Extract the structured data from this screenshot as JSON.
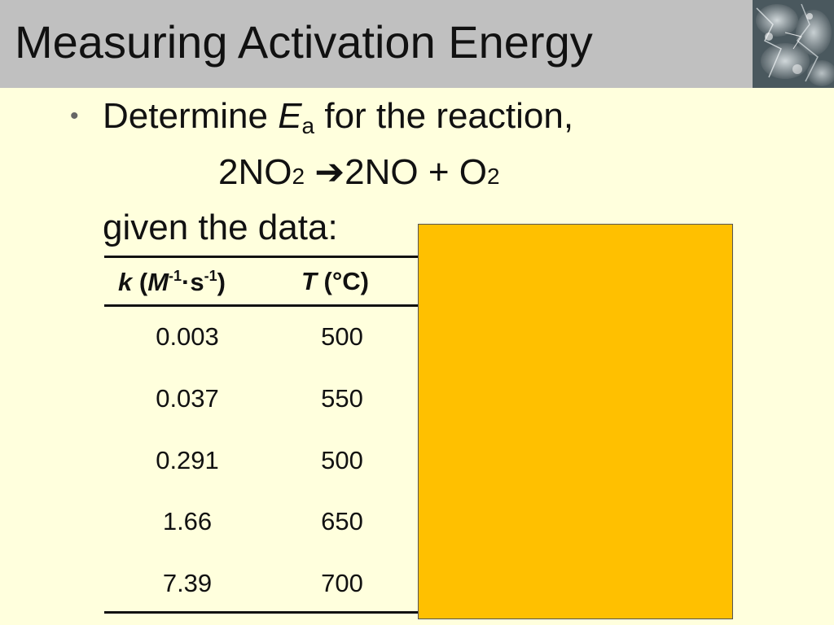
{
  "slide": {
    "title": "Measuring Activation Energy",
    "bullet_symbol": "•",
    "bullet": {
      "prefix": "Determine ",
      "E": "E",
      "a": "a",
      "suffix": " for the reaction,"
    },
    "equation": {
      "lhs_coef": "2NO",
      "lhs_sub": "2",
      "arrow": "➔",
      "rhs_a": "2NO + O",
      "rhs_sub": "2"
    },
    "given": "given the data:",
    "table": {
      "headers": {
        "k_symbol": "k",
        "k_open": " (",
        "k_M": "M",
        "k_exp1": "-1",
        "k_dot": "·s",
        "k_exp2": "-1",
        "k_close": ")",
        "t_symbol": "T",
        "t_unit": " (°C)"
      },
      "rows": [
        {
          "k": "0.003",
          "t": "500"
        },
        {
          "k": "0.037",
          "t": "550"
        },
        {
          "k": "0.291",
          "t": "500"
        },
        {
          "k": "1.66",
          "t": "650"
        },
        {
          "k": "7.39",
          "t": "700"
        }
      ]
    }
  },
  "colors": {
    "background": "#FFFFDD",
    "title_bar": "#C0C0C0",
    "overlay_box": "#FFC000",
    "text": "#111111"
  },
  "images": {
    "corner": "ice-crystal-photo"
  }
}
